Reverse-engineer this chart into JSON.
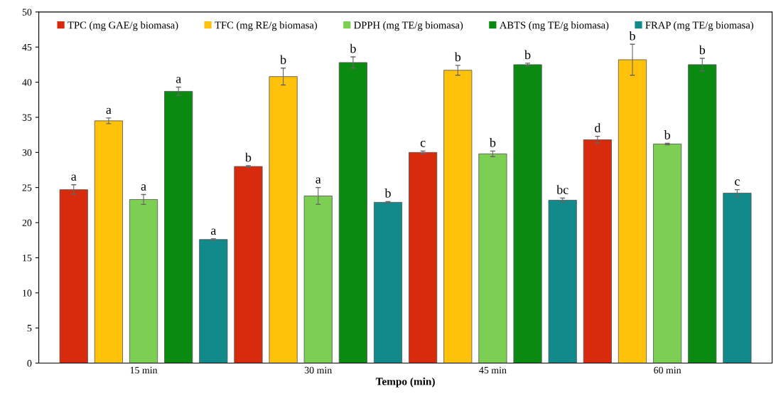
{
  "chart_data": {
    "type": "bar",
    "xlabel": "Tempo (min)",
    "categories": [
      "15 min",
      "30 min",
      "45 min",
      "60 min"
    ],
    "series": [
      {
        "name": "TPC (mg GAE/g biomasa)",
        "color": "#d82a0c",
        "values": [
          24.7,
          28.0,
          30.0,
          31.8
        ],
        "errors": [
          0.7,
          0.1,
          0.2,
          0.5
        ],
        "value_labels": [
          "a",
          "b",
          "c",
          "d"
        ]
      },
      {
        "name": "TFC (mg RE/g biomasa)",
        "color": "#ffc20a",
        "values": [
          34.5,
          40.8,
          41.7,
          43.2
        ],
        "errors": [
          0.4,
          1.2,
          0.7,
          2.2
        ],
        "value_labels": [
          "a",
          "b",
          "b",
          "b"
        ]
      },
      {
        "name": "DPPH (mg TE/g biomasa)",
        "color": "#7ccf52",
        "values": [
          23.3,
          23.8,
          29.8,
          31.2
        ],
        "errors": [
          0.7,
          1.2,
          0.4,
          0.1
        ],
        "value_labels": [
          "a",
          "a",
          "b",
          "b"
        ]
      },
      {
        "name": "ABTS (mg TE/g biomasa)",
        "color": "#0a8a10",
        "values": [
          38.7,
          42.8,
          42.5,
          42.5
        ],
        "errors": [
          0.6,
          0.8,
          0.2,
          0.9
        ],
        "value_labels": [
          "a",
          "b",
          "b",
          "b"
        ]
      },
      {
        "name": "FRAP (mg TE/g biomasa)",
        "color": "#12898a",
        "values": [
          17.6,
          22.9,
          23.2,
          24.2
        ],
        "errors": [
          0.1,
          0.1,
          0.3,
          0.5
        ],
        "value_labels": [
          "a",
          "b",
          "bc",
          "c"
        ]
      }
    ],
    "ylim": [
      0,
      50
    ],
    "yticks": [
      0,
      5,
      10,
      15,
      20,
      25,
      30,
      35,
      40,
      45,
      50
    ],
    "grid": false,
    "legend": "top"
  }
}
